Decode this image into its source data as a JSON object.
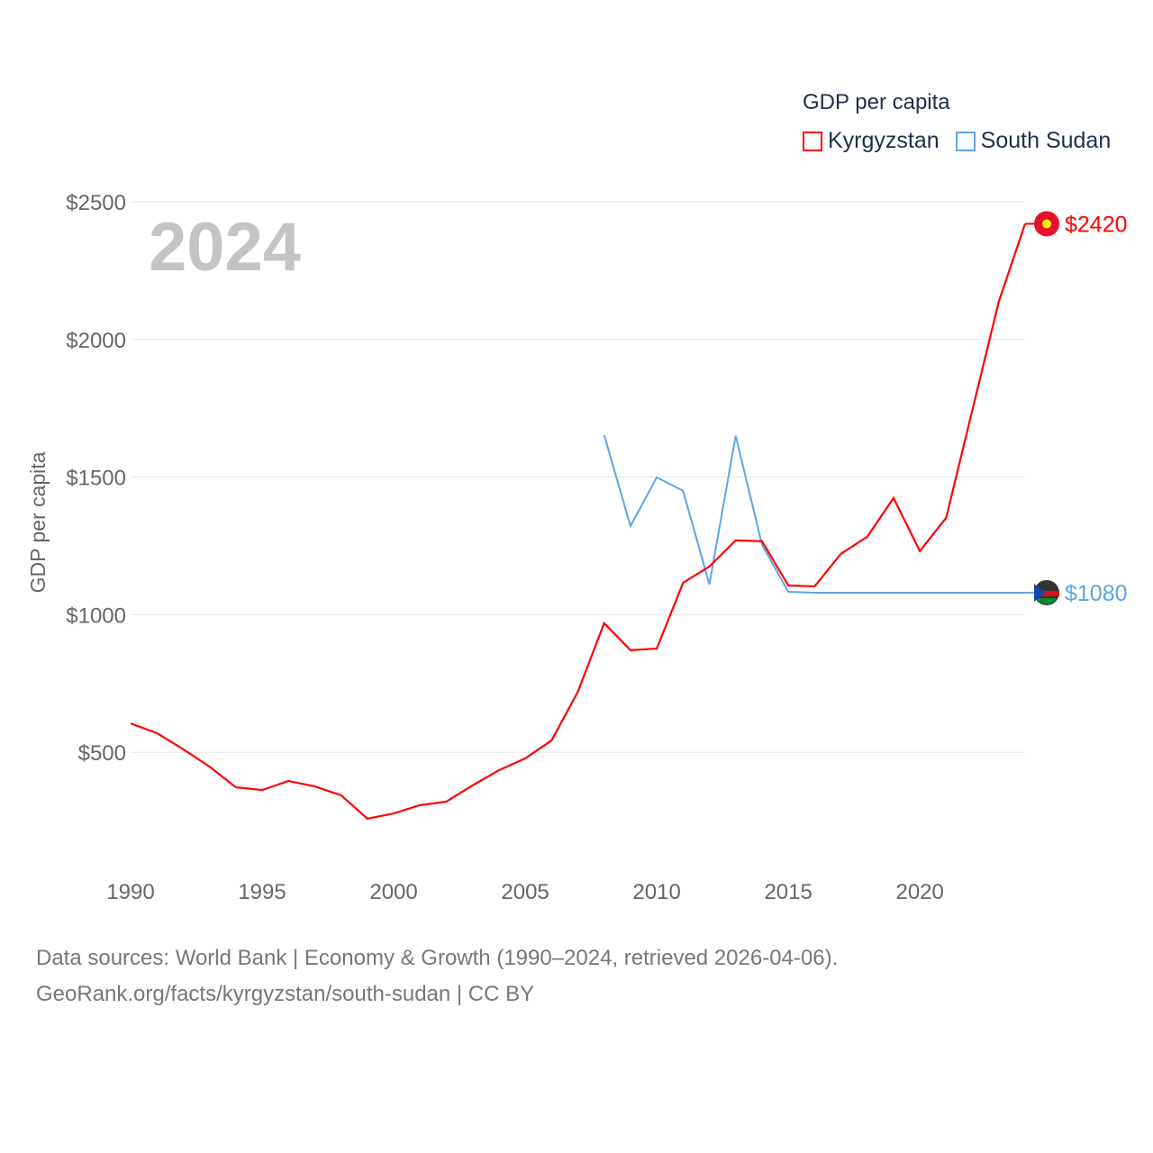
{
  "chart_data": {
    "type": "line",
    "title": "GDP per capita",
    "ylabel": "GDP per capita",
    "xlabel": "",
    "year_label": "2024",
    "ylim": [
      0,
      2500
    ],
    "xlim": [
      1990,
      2024
    ],
    "yticks": [
      500,
      1000,
      1500,
      2000,
      2500
    ],
    "ytick_labels": [
      "$500",
      "$1000",
      "$1500",
      "$2000",
      "$2500"
    ],
    "xticks": [
      1990,
      1995,
      2000,
      2005,
      2010,
      2015,
      2020
    ],
    "xtick_labels": [
      "1990",
      "1995",
      "2000",
      "2005",
      "2010",
      "2015",
      "2020"
    ],
    "grid": true,
    "legend_position": "top-right",
    "series": [
      {
        "name": "Kyrgyzstan",
        "color": "#ff0000",
        "end_label": "$2420",
        "x": [
          1990,
          1991,
          1992,
          1993,
          1994,
          1995,
          1996,
          1997,
          1998,
          1999,
          2000,
          2001,
          2002,
          2003,
          2004,
          2005,
          2006,
          2007,
          2008,
          2009,
          2010,
          2011,
          2012,
          2013,
          2014,
          2015,
          2016,
          2017,
          2018,
          2019,
          2020,
          2021,
          2022,
          2023,
          2024
        ],
        "values": [
          605,
          570,
          511,
          448,
          373,
          363,
          396,
          376,
          344,
          259,
          278,
          308,
          321,
          380,
          435,
          478,
          543,
          720,
          969,
          871,
          877,
          1116,
          1175,
          1270,
          1267,
          1106,
          1103,
          1221,
          1283,
          1424,
          1231,
          1352,
          1745,
          2137,
          2420
        ]
      },
      {
        "name": "South Sudan",
        "color": "#5ba4ec",
        "end_label": "$1080",
        "x": [
          2008,
          2009,
          2010,
          2011,
          2012,
          2013,
          2014,
          2015,
          2016,
          2017,
          2018,
          2019,
          2020,
          2021,
          2022,
          2023,
          2024
        ],
        "values": [
          1653,
          1322,
          1499,
          1450,
          1110,
          1650,
          1254,
          1083,
          1080,
          1080,
          1080,
          1080,
          1080,
          1080,
          1080,
          1080,
          1080
        ]
      }
    ]
  },
  "footer": {
    "line1": "Data sources: World Bank | Economy & Growth (1990–2024, retrieved 2026-04-06).",
    "line2": "GeoRank.org/facts/kyrgyzstan/south-sudan | CC BY"
  }
}
